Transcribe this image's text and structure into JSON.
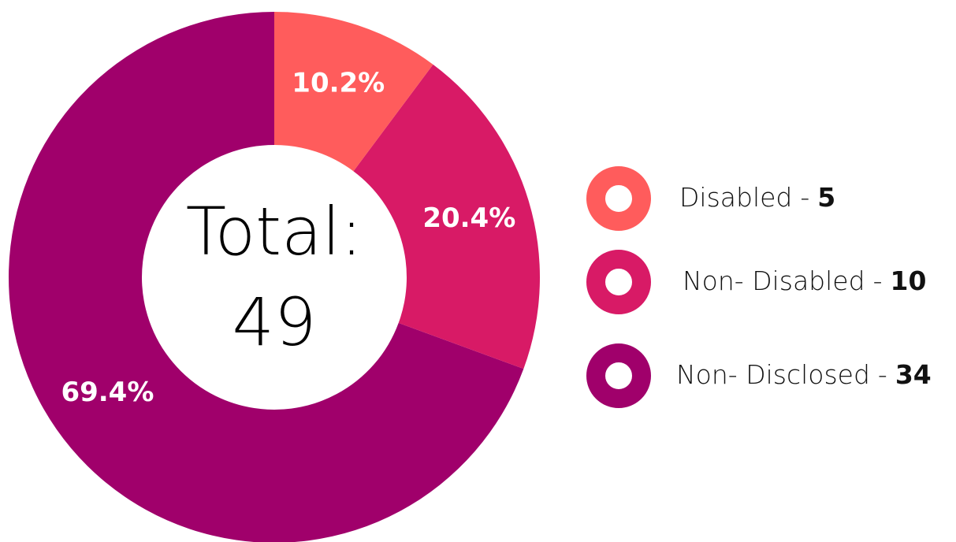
{
  "chart_data": {
    "type": "donut",
    "center_label": "Total:",
    "total": 49,
    "categories": [
      "Disabled",
      "Non- Disabled",
      "Non- Disclosed"
    ],
    "values": [
      10.2,
      20.4,
      69.4
    ],
    "value_labels": [
      "10.2%",
      "20.4%",
      "69.4%"
    ],
    "counts": [
      5,
      10,
      34
    ],
    "separator": "-",
    "colors": [
      "#ff5c5c",
      "#d81a66",
      "#a0006b"
    ],
    "legend": "right"
  }
}
